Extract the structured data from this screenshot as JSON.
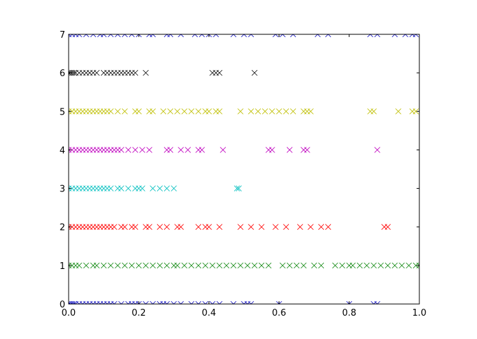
{
  "chart_data": {
    "type": "scatter",
    "marker": "x",
    "xlim": [
      0,
      1
    ],
    "ylim": [
      0,
      7
    ],
    "xticks": [
      {
        "value": 0,
        "label": "0.0"
      },
      {
        "value": 0.2,
        "label": "0.2"
      },
      {
        "value": 0.4,
        "label": "0.4"
      },
      {
        "value": 0.6,
        "label": "0.6"
      },
      {
        "value": 0.8,
        "label": "0.8"
      },
      {
        "value": 1,
        "label": "1.0"
      }
    ],
    "yticks": [
      0,
      1,
      2,
      3,
      4,
      5,
      6,
      7
    ],
    "series": [
      {
        "color": "#0000bf",
        "x": [
          0,
          0.005,
          0.01,
          0.015,
          0.02,
          0.03,
          0.04,
          0.05,
          0.06,
          0.07,
          0.08,
          0.09,
          0.1,
          0.11,
          0.12,
          0.13,
          0.15,
          0.17,
          0.18,
          0.19,
          0.2,
          0.22,
          0.24,
          0.26,
          0.27,
          0.28,
          0.3,
          0.32,
          0.35,
          0.37,
          0.39,
          0.41,
          0.43,
          0.47,
          0.5,
          0.51,
          0.52,
          0.6,
          0.8,
          0.87,
          0.88
        ],
        "values": [
          0,
          0,
          0,
          0,
          0,
          0,
          0,
          0,
          0,
          0,
          0,
          0,
          0,
          0,
          0,
          0,
          0,
          0,
          0,
          0,
          0,
          0,
          0,
          0,
          0,
          0,
          0,
          0,
          0,
          0,
          0,
          0,
          0,
          0,
          0,
          0,
          0,
          0,
          0,
          0,
          0
        ]
      },
      {
        "color": "#008000",
        "x": [
          0,
          0.01,
          0.02,
          0.03,
          0.05,
          0.07,
          0.08,
          0.1,
          0.12,
          0.14,
          0.16,
          0.18,
          0.2,
          0.22,
          0.24,
          0.26,
          0.28,
          0.3,
          0.31,
          0.33,
          0.35,
          0.37,
          0.39,
          0.41,
          0.43,
          0.45,
          0.47,
          0.49,
          0.51,
          0.53,
          0.55,
          0.57,
          0.61,
          0.63,
          0.65,
          0.67,
          0.7,
          0.72,
          0.76,
          0.78,
          0.8,
          0.81,
          0.83,
          0.85,
          0.87,
          0.89,
          0.91,
          0.93,
          0.95,
          0.97,
          0.99,
          1.0
        ],
        "values": [
          1,
          1,
          1,
          1,
          1,
          1,
          1,
          1,
          1,
          1,
          1,
          1,
          1,
          1,
          1,
          1,
          1,
          1,
          1,
          1,
          1,
          1,
          1,
          1,
          1,
          1,
          1,
          1,
          1,
          1,
          1,
          1,
          1,
          1,
          1,
          1,
          1,
          1,
          1,
          1,
          1,
          1,
          1,
          1,
          1,
          1,
          1,
          1,
          1,
          1,
          1,
          1
        ]
      },
      {
        "color": "#ff0000",
        "x": [
          0,
          0.01,
          0.02,
          0.03,
          0.04,
          0.05,
          0.06,
          0.07,
          0.08,
          0.09,
          0.1,
          0.11,
          0.12,
          0.13,
          0.15,
          0.16,
          0.18,
          0.19,
          0.22,
          0.23,
          0.26,
          0.28,
          0.31,
          0.32,
          0.37,
          0.39,
          0.4,
          0.43,
          0.49,
          0.52,
          0.55,
          0.59,
          0.62,
          0.66,
          0.69,
          0.72,
          0.74,
          0.9,
          0.91
        ],
        "values": [
          2,
          2,
          2,
          2,
          2,
          2,
          2,
          2,
          2,
          2,
          2,
          2,
          2,
          2,
          2,
          2,
          2,
          2,
          2,
          2,
          2,
          2,
          2,
          2,
          2,
          2,
          2,
          2,
          2,
          2,
          2,
          2,
          2,
          2,
          2,
          2,
          2,
          2,
          2
        ]
      },
      {
        "color": "#00bfbf",
        "x": [
          0,
          0.01,
          0.02,
          0.03,
          0.04,
          0.05,
          0.06,
          0.07,
          0.08,
          0.09,
          0.1,
          0.11,
          0.12,
          0.14,
          0.15,
          0.17,
          0.19,
          0.2,
          0.21,
          0.24,
          0.26,
          0.28,
          0.3,
          0.48,
          0.485
        ],
        "values": [
          3,
          3,
          3,
          3,
          3,
          3,
          3,
          3,
          3,
          3,
          3,
          3,
          3,
          3,
          3,
          3,
          3,
          3,
          3,
          3,
          3,
          3,
          3,
          3,
          3
        ]
      },
      {
        "color": "#bf00bf",
        "x": [
          0,
          0.01,
          0.02,
          0.03,
          0.04,
          0.05,
          0.06,
          0.07,
          0.08,
          0.09,
          0.1,
          0.11,
          0.12,
          0.13,
          0.14,
          0.15,
          0.17,
          0.19,
          0.21,
          0.23,
          0.28,
          0.29,
          0.32,
          0.34,
          0.37,
          0.38,
          0.44,
          0.57,
          0.58,
          0.63,
          0.67,
          0.68,
          0.88
        ],
        "values": [
          4,
          4,
          4,
          4,
          4,
          4,
          4,
          4,
          4,
          4,
          4,
          4,
          4,
          4,
          4,
          4,
          4,
          4,
          4,
          4,
          4,
          4,
          4,
          4,
          4,
          4,
          4,
          4,
          4,
          4,
          4,
          4,
          4
        ]
      },
      {
        "color": "#bfbf00",
        "x": [
          0,
          0.01,
          0.02,
          0.03,
          0.04,
          0.05,
          0.06,
          0.07,
          0.08,
          0.09,
          0.1,
          0.11,
          0.12,
          0.14,
          0.16,
          0.19,
          0.2,
          0.23,
          0.24,
          0.27,
          0.29,
          0.31,
          0.33,
          0.35,
          0.37,
          0.39,
          0.4,
          0.42,
          0.43,
          0.49,
          0.52,
          0.54,
          0.56,
          0.58,
          0.6,
          0.62,
          0.64,
          0.67,
          0.68,
          0.69,
          0.86,
          0.87,
          0.94,
          0.98,
          0.99
        ],
        "values": [
          5,
          5,
          5,
          5,
          5,
          5,
          5,
          5,
          5,
          5,
          5,
          5,
          5,
          5,
          5,
          5,
          5,
          5,
          5,
          5,
          5,
          5,
          5,
          5,
          5,
          5,
          5,
          5,
          5,
          5,
          5,
          5,
          5,
          5,
          5,
          5,
          5,
          5,
          5,
          5,
          5,
          5,
          5,
          5,
          5
        ]
      },
      {
        "color": "#000000",
        "x": [
          0,
          0.005,
          0.01,
          0.015,
          0.02,
          0.03,
          0.04,
          0.05,
          0.06,
          0.07,
          0.08,
          0.1,
          0.11,
          0.12,
          0.13,
          0.14,
          0.15,
          0.16,
          0.17,
          0.18,
          0.19,
          0.22,
          0.41,
          0.42,
          0.43,
          0.53
        ],
        "values": [
          6,
          6,
          6,
          6,
          6,
          6,
          6,
          6,
          6,
          6,
          6,
          6,
          6,
          6,
          6,
          6,
          6,
          6,
          6,
          6,
          6,
          6,
          6,
          6,
          6,
          6
        ]
      },
      {
        "color": "#0000bf",
        "x": [
          0,
          0.01,
          0.02,
          0.03,
          0.05,
          0.07,
          0.09,
          0.1,
          0.12,
          0.14,
          0.16,
          0.18,
          0.2,
          0.23,
          0.24,
          0.28,
          0.29,
          0.32,
          0.36,
          0.38,
          0.4,
          0.42,
          0.47,
          0.5,
          0.52,
          0.59,
          0.61,
          0.64,
          0.71,
          0.74,
          0.86,
          0.88,
          0.93,
          0.96,
          0.98,
          0.99
        ],
        "values": [
          7,
          7,
          7,
          7,
          7,
          7,
          7,
          7,
          7,
          7,
          7,
          7,
          7,
          7,
          7,
          7,
          7,
          7,
          7,
          7,
          7,
          7,
          7,
          7,
          7,
          7,
          7,
          7,
          7,
          7,
          7,
          7,
          7,
          7,
          7,
          7
        ]
      }
    ]
  }
}
